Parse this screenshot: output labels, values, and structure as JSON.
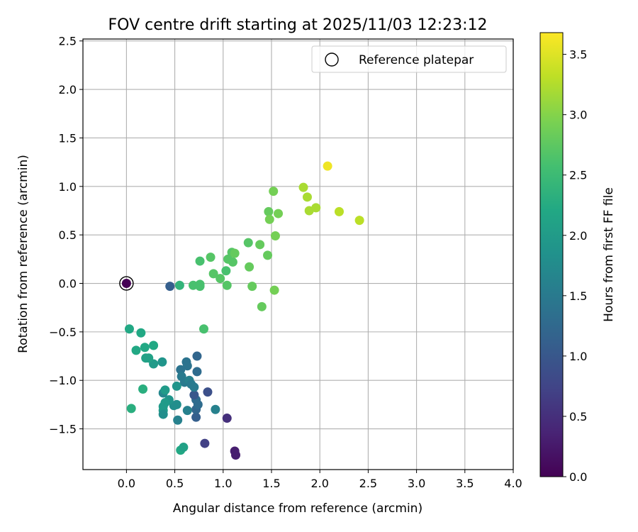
{
  "chart_data": {
    "type": "scatter",
    "title": "FOV centre drift starting at 2025/11/03 12:23:12",
    "xlabel": "Angular distance from reference (arcmin)",
    "ylabel": "Rotation from reference (arcmin)",
    "xlim": [
      -0.45,
      4.0
    ],
    "ylim": [
      -1.92,
      2.52
    ],
    "x_ticks": [
      0.0,
      0.5,
      1.0,
      1.5,
      2.0,
      2.5,
      3.0,
      3.5,
      4.0
    ],
    "x_tick_labels": [
      "0.0",
      "0.5",
      "1.0",
      "1.5",
      "2.0",
      "2.5",
      "3.0",
      "3.5",
      "4.0"
    ],
    "y_ticks": [
      -1.5,
      -1.0,
      -0.5,
      0.0,
      0.5,
      1.0,
      1.5,
      2.0,
      2.5
    ],
    "y_tick_labels": [
      "−1.5",
      "−1.0",
      "−0.5",
      "0.0",
      "0.5",
      "1.0",
      "1.5",
      "2.0",
      "2.5"
    ],
    "grid": true,
    "legend": {
      "position": "top-right",
      "entries": [
        "Reference platepar"
      ]
    },
    "colorbar": {
      "label": "Hours from first FF file",
      "colormap": "viridis",
      "range": [
        0.0,
        3.68
      ],
      "ticks": [
        0.0,
        0.5,
        1.0,
        1.5,
        2.0,
        2.5,
        3.0,
        3.5
      ],
      "tick_labels": [
        "0.0",
        "0.5",
        "1.0",
        "1.5",
        "2.0",
        "2.5",
        "3.0",
        "3.5"
      ]
    },
    "reference_point": {
      "name": "Reference platepar",
      "x": 0.0,
      "y": 0.0,
      "hours": 0.0
    },
    "points": [
      [
        1.13,
        -1.77,
        0.3
      ],
      [
        1.12,
        -1.73,
        0.3
      ],
      [
        1.04,
        -1.39,
        0.5
      ],
      [
        0.81,
        -1.65,
        0.7
      ],
      [
        0.84,
        -1.12,
        0.9
      ],
      [
        0.72,
        -1.38,
        1.1
      ],
      [
        0.72,
        -1.3,
        1.2
      ],
      [
        0.74,
        -1.25,
        1.3
      ],
      [
        0.72,
        -1.2,
        1.3
      ],
      [
        0.7,
        -1.15,
        1.0
      ],
      [
        0.73,
        -0.91,
        1.3
      ],
      [
        0.73,
        -0.75,
        1.2
      ],
      [
        0.62,
        -0.81,
        1.4
      ],
      [
        0.63,
        -0.85,
        1.4
      ],
      [
        0.56,
        -0.89,
        1.4
      ],
      [
        0.57,
        -0.96,
        1.5
      ],
      [
        0.6,
        -1.02,
        1.5
      ],
      [
        0.65,
        -1.0,
        1.6
      ],
      [
        0.67,
        -1.04,
        1.5
      ],
      [
        0.7,
        -1.07,
        1.5
      ],
      [
        0.63,
        -1.31,
        1.6
      ],
      [
        0.92,
        -1.3,
        1.6
      ],
      [
        0.53,
        -1.41,
        1.6
      ],
      [
        0.49,
        -1.26,
        1.8
      ],
      [
        0.52,
        -1.25,
        1.8
      ],
      [
        0.52,
        -1.06,
        1.9
      ],
      [
        0.44,
        -1.2,
        1.9
      ],
      [
        0.4,
        -1.23,
        2.0
      ],
      [
        0.38,
        -1.27,
        2.0
      ],
      [
        0.38,
        -1.31,
        2.0
      ],
      [
        0.38,
        -1.35,
        1.8
      ],
      [
        0.38,
        -1.13,
        1.7
      ],
      [
        0.4,
        -1.1,
        2.0
      ],
      [
        0.37,
        -0.81,
        1.9
      ],
      [
        0.28,
        -0.83,
        2.0
      ],
      [
        0.23,
        -0.77,
        2.1
      ],
      [
        0.2,
        -0.77,
        2.1
      ],
      [
        0.19,
        -0.66,
        2.2
      ],
      [
        0.28,
        -0.64,
        2.2
      ],
      [
        0.1,
        -0.69,
        2.2
      ],
      [
        0.15,
        -0.51,
        2.2
      ],
      [
        0.03,
        -0.47,
        2.2
      ],
      [
        0.05,
        -1.29,
        2.3
      ],
      [
        0.17,
        -1.09,
        2.3
      ],
      [
        0.56,
        -1.72,
        2.2
      ],
      [
        0.59,
        -1.69,
        2.1
      ],
      [
        0.45,
        -0.03,
        1.1
      ],
      [
        0.55,
        -0.02,
        2.4
      ],
      [
        0.69,
        -0.02,
        2.6
      ],
      [
        0.76,
        -0.03,
        2.6
      ],
      [
        0.76,
        -0.01,
        2.6
      ],
      [
        0.8,
        -0.47,
        2.6
      ],
      [
        0.76,
        0.23,
        2.6
      ],
      [
        0.87,
        0.27,
        2.7
      ],
      [
        0.9,
        0.1,
        2.7
      ],
      [
        0.97,
        0.05,
        2.7
      ],
      [
        1.03,
        0.13,
        2.6
      ],
      [
        1.04,
        -0.02,
        2.7
      ],
      [
        1.05,
        0.25,
        2.7
      ],
      [
        1.09,
        0.32,
        2.7
      ],
      [
        1.1,
        0.22,
        2.7
      ],
      [
        1.12,
        0.31,
        2.8
      ],
      [
        1.26,
        0.42,
        2.7
      ],
      [
        1.27,
        0.17,
        2.8
      ],
      [
        1.3,
        -0.03,
        2.8
      ],
      [
        1.38,
        0.4,
        2.8
      ],
      [
        1.4,
        -0.24,
        2.8
      ],
      [
        1.46,
        0.29,
        2.8
      ],
      [
        1.47,
        0.74,
        2.8
      ],
      [
        1.48,
        0.66,
        2.9
      ],
      [
        1.52,
        0.95,
        2.9
      ],
      [
        1.53,
        -0.07,
        2.9
      ],
      [
        1.54,
        0.49,
        2.9
      ],
      [
        1.57,
        0.72,
        2.9
      ],
      [
        1.83,
        0.99,
        3.2
      ],
      [
        1.87,
        0.89,
        3.2
      ],
      [
        1.89,
        0.75,
        3.2
      ],
      [
        1.96,
        0.78,
        3.2
      ],
      [
        2.08,
        1.21,
        3.6
      ],
      [
        2.2,
        0.74,
        3.3
      ],
      [
        2.41,
        0.65,
        3.3
      ]
    ]
  }
}
